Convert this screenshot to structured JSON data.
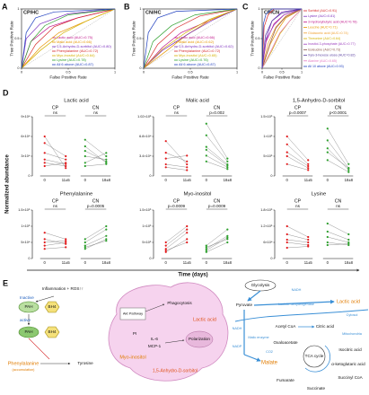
{
  "chart_data": [
    {
      "type": "roc",
      "label": "A",
      "title": "CP/HC",
      "xlabel": "False Positive Rate",
      "ylabel": "True Positive Rate",
      "xlim": [
        0,
        1
      ],
      "ylim": [
        0,
        1
      ],
      "xticks": [
        0,
        0.5,
        1
      ],
      "yticks": [
        0,
        0.5,
        1
      ],
      "legend": "lower right",
      "series": [
        {
          "name": "Lactic acid (AUC=0.75)",
          "color": "#c0168a",
          "x": [
            0,
            0.1,
            0.3,
            0.6,
            1
          ],
          "values": [
            0,
            0.45,
            0.7,
            0.85,
            1
          ]
        },
        {
          "name": "Malic acid (AUC=0.66)",
          "color": "#e69500",
          "x": [
            0,
            0.2,
            0.4,
            0.7,
            1
          ],
          "values": [
            0,
            0.35,
            0.6,
            0.8,
            1
          ]
        },
        {
          "name": "1,5-Anhydro-D-sorbitol (AUC=0.80)",
          "color": "#7b2fbe",
          "x": [
            0,
            0.05,
            0.2,
            0.5,
            1
          ],
          "values": [
            0,
            0.5,
            0.75,
            0.92,
            1
          ]
        },
        {
          "name": "Phenylalanine (AUC=0.72)",
          "color": "#d62728",
          "x": [
            0,
            0.15,
            0.35,
            0.6,
            1
          ],
          "values": [
            0,
            0.4,
            0.7,
            0.85,
            1
          ]
        },
        {
          "name": "Myo-inositol (AUC=0.64)",
          "color": "#d4b000",
          "x": [
            0,
            0.2,
            0.45,
            0.7,
            1
          ],
          "values": [
            0,
            0.3,
            0.6,
            0.8,
            1
          ]
        },
        {
          "name": "Lysine (AUC=0.78)",
          "color": "#2ca02c",
          "x": [
            0,
            0.1,
            0.25,
            0.5,
            1
          ],
          "values": [
            0,
            0.45,
            0.72,
            0.9,
            1
          ]
        },
        {
          "name": "All 6 above (AUC=0.87)",
          "color": "#1f3fbf",
          "x": [
            0,
            0.05,
            0.15,
            0.35,
            1
          ],
          "values": [
            0,
            0.6,
            0.85,
            0.95,
            1
          ]
        }
      ]
    },
    {
      "type": "roc",
      "label": "B",
      "title": "CN/HC",
      "xlabel": "False Positive Rate",
      "ylabel": "True Positive Rate",
      "xlim": [
        0,
        1
      ],
      "ylim": [
        0,
        1
      ],
      "xticks": [
        0,
        0.5,
        1
      ],
      "yticks": [
        0,
        0.5,
        1
      ],
      "legend": "lower right",
      "series": [
        {
          "name": "Lactic acid (AUC=0.66)",
          "color": "#c0168a",
          "x": [
            0,
            0.2,
            0.4,
            0.7,
            1
          ],
          "values": [
            0,
            0.35,
            0.6,
            0.8,
            1
          ]
        },
        {
          "name": "Malic acid (AUC=0.62)",
          "color": "#e69500",
          "x": [
            0,
            0.25,
            0.45,
            0.7,
            1
          ],
          "values": [
            0,
            0.3,
            0.55,
            0.8,
            1
          ]
        },
        {
          "name": "1,5-Anhydro-D-sorbitol (AUC=0.62)",
          "color": "#7b2fbe",
          "x": [
            0,
            0.2,
            0.5,
            0.75,
            1
          ],
          "values": [
            0,
            0.3,
            0.6,
            0.82,
            1
          ]
        },
        {
          "name": "Phenylalanine (AUC=0.72)",
          "color": "#d62728",
          "x": [
            0,
            0.15,
            0.35,
            0.6,
            1
          ],
          "values": [
            0,
            0.4,
            0.68,
            0.88,
            1
          ]
        },
        {
          "name": "Myo-inositol (AUC=0.65)",
          "color": "#d4b000",
          "x": [
            0,
            0.2,
            0.45,
            0.7,
            1
          ],
          "values": [
            0,
            0.32,
            0.6,
            0.82,
            1
          ]
        },
        {
          "name": "Lysine (AUC=0.76)",
          "color": "#2ca02c",
          "x": [
            0,
            0.1,
            0.3,
            0.55,
            1
          ],
          "values": [
            0,
            0.45,
            0.72,
            0.9,
            1
          ]
        },
        {
          "name": "All 6 above (AUC=0.87)",
          "color": "#1f3fbf",
          "x": [
            0,
            0.05,
            0.15,
            0.35,
            1
          ],
          "values": [
            0,
            0.6,
            0.85,
            0.96,
            1
          ]
        }
      ]
    },
    {
      "type": "roc",
      "label": "C",
      "title": "CP/CN",
      "xlabel": "False Positive Rate",
      "ylabel": "True Positive Rate",
      "xlim": [
        0,
        1
      ],
      "ylim": [
        0,
        1
      ],
      "xticks": [
        0,
        0.5,
        1
      ],
      "yticks": [
        0,
        0.5,
        1
      ],
      "legend": "right",
      "series": [
        {
          "name": "Sorbitol (AUC=0.91)",
          "color": "#d62728",
          "x": [
            0,
            0.05,
            0.15,
            0.3,
            1
          ],
          "values": [
            0,
            0.7,
            0.9,
            1,
            1
          ]
        },
        {
          "name": "Lysine (AUC=0.81)",
          "color": "#7b2fbe",
          "x": [
            0,
            0.1,
            0.25,
            0.5,
            1
          ],
          "values": [
            0,
            0.5,
            0.8,
            0.95,
            1
          ]
        },
        {
          "name": "3-Hydroxybutyric acid (AUC=0.78)",
          "color": "#c0168a",
          "x": [
            0,
            0.1,
            0.3,
            0.55,
            1
          ],
          "values": [
            0,
            0.45,
            0.75,
            0.9,
            1
          ]
        },
        {
          "name": "Leucine (AUC=0.71)",
          "color": "#e69500",
          "x": [
            0,
            0.2,
            0.4,
            0.6,
            1
          ],
          "values": [
            0,
            0.4,
            0.65,
            0.85,
            1
          ]
        },
        {
          "name": "Glutaconic acid (AUC=0.74)",
          "color": "#f0a030",
          "x": [
            0,
            0.15,
            0.35,
            0.6,
            1
          ],
          "values": [
            0,
            0.42,
            0.7,
            0.88,
            1
          ]
        },
        {
          "name": "Threonine (AUC=0.64)",
          "color": "#d4b000",
          "x": [
            0,
            0.25,
            0.45,
            0.7,
            1
          ],
          "values": [
            0,
            0.3,
            0.58,
            0.8,
            1
          ]
        },
        {
          "name": "Inositol-3-phosphate (AUC=0.77)",
          "color": "#9c3fbe",
          "x": [
            0,
            0.1,
            0.3,
            0.55,
            1
          ],
          "values": [
            0,
            0.48,
            0.73,
            0.9,
            1
          ]
        },
        {
          "name": "Isoleucine (AUC=0.73)",
          "color": "#8c564b",
          "x": [
            0,
            0.2,
            0.35,
            0.6,
            1
          ],
          "values": [
            0,
            0.42,
            0.68,
            0.87,
            1
          ]
        },
        {
          "name": "Xylo-3-hexose ulose (AUC=0.82)",
          "color": "#5a3fa0",
          "x": [
            0,
            0.08,
            0.25,
            0.5,
            1
          ],
          "values": [
            0,
            0.55,
            0.8,
            0.93,
            1
          ]
        },
        {
          "name": "Alanine (AUC=0.65)",
          "color": "#e377c2",
          "x": [
            0,
            0.25,
            0.45,
            0.7,
            1
          ],
          "values": [
            0,
            0.33,
            0.6,
            0.8,
            1
          ]
        },
        {
          "name": "All 10 above (AUC=0.93)",
          "color": "#1f3fbf",
          "x": [
            0,
            0.03,
            0.1,
            0.25,
            1
          ],
          "values": [
            0,
            0.75,
            0.92,
            1,
            1
          ]
        }
      ]
    },
    {
      "type": "paired",
      "title": "Lactic acid",
      "ylim": [
        0,
        90000
      ],
      "yticks": [
        0,
        {
          "value": 30000,
          "label": "3×10⁴"
        },
        {
          "value": 60000,
          "label": "6×10⁴"
        },
        {
          "value": 90000,
          "label": "9×10⁴"
        }
      ],
      "groups": [
        {
          "name": "CP",
          "color": "#e41a1c",
          "xlabels": [
            "0",
            "11±5"
          ],
          "annotation": "ns",
          "pairs": [
            [
              20000,
              15000
            ],
            [
              35000,
              25000
            ],
            [
              50000,
              30000
            ],
            [
              15000,
              20000
            ],
            [
              60000,
              12000
            ],
            [
              25000,
              18000
            ]
          ]
        },
        {
          "name": "CN",
          "color": "#2ca02c",
          "xlabels": [
            "0",
            "18±8"
          ],
          "annotation": "ns",
          "pairs": [
            [
              30000,
              25000
            ],
            [
              45000,
              20000
            ],
            [
              20000,
              35000
            ],
            [
              55000,
              30000
            ],
            [
              15000,
              18000
            ],
            [
              38000,
              22000
            ]
          ]
        }
      ]
    },
    {
      "type": "paired",
      "title": "Malic acid",
      "ylim": [
        0,
        102000
      ],
      "yticks": [
        0,
        {
          "value": 34000,
          "label": "3.4×10⁴"
        },
        {
          "value": 68000,
          "label": "6.8×10⁴"
        },
        {
          "value": 102000,
          "label": "1.02×10⁵"
        }
      ],
      "groups": [
        {
          "name": "CP",
          "color": "#e41a1c",
          "xlabels": [
            "0",
            "11±5"
          ],
          "annotation": "ns",
          "pairs": [
            [
              20000,
              15000
            ],
            [
              40000,
              25000
            ],
            [
              30000,
              35000
            ],
            [
              60000,
              20000
            ],
            [
              15000,
              10000
            ]
          ]
        },
        {
          "name": "CN",
          "color": "#2ca02c",
          "xlabels": [
            "0",
            "18±8"
          ],
          "annotation": "p=0.002",
          "pairs": [
            [
              50000,
              20000
            ],
            [
              70000,
              25000
            ],
            [
              35000,
              15000
            ],
            [
              90000,
              30000
            ],
            [
              25000,
              12000
            ],
            [
              45000,
              18000
            ]
          ]
        }
      ]
    },
    {
      "type": "paired",
      "title": "1,5-Anhydro-D-sorbitol",
      "ylim": [
        0,
        1500000
      ],
      "yticks": [
        0,
        {
          "value": 500000,
          "label": "5×10⁵"
        },
        {
          "value": 1000000,
          "label": "1×10⁶"
        },
        {
          "value": 1500000,
          "label": "1.5×10⁶"
        }
      ],
      "groups": [
        {
          "name": "CP",
          "color": "#e41a1c",
          "xlabels": [
            "0",
            "11±5"
          ],
          "annotation": "p=0.0007",
          "pairs": [
            [
              800000,
              300000
            ],
            [
              500000,
              200000
            ],
            [
              1000000,
              400000
            ],
            [
              300000,
              150000
            ],
            [
              600000,
              250000
            ]
          ]
        },
        {
          "name": "CN",
          "color": "#2ca02c",
          "xlabels": [
            "0",
            "18±8"
          ],
          "annotation": "p<0.0001",
          "pairs": [
            [
              900000,
              200000
            ],
            [
              700000,
              150000
            ],
            [
              1200000,
              300000
            ],
            [
              400000,
              100000
            ],
            [
              600000,
              200000
            ]
          ]
        }
      ]
    },
    {
      "type": "paired",
      "title": "Phenylalanine",
      "ylim": [
        0,
        150000
      ],
      "yticks": [
        0,
        {
          "value": 50000,
          "label": "5×10⁴"
        },
        {
          "value": 100000,
          "label": "1×10⁵"
        },
        {
          "value": 150000,
          "label": "1.5×10⁵"
        }
      ],
      "groups": [
        {
          "name": "CP",
          "color": "#e41a1c",
          "xlabels": [
            "0",
            "11±5"
          ],
          "annotation": "ns",
          "pairs": [
            [
              40000,
              50000
            ],
            [
              60000,
              45000
            ],
            [
              30000,
              35000
            ],
            [
              80000,
              60000
            ],
            [
              50000,
              55000
            ]
          ]
        },
        {
          "name": "CN",
          "color": "#2ca02c",
          "xlabels": [
            "0",
            "18±8"
          ],
          "annotation": "p=0.0005",
          "pairs": [
            [
              40000,
              70000
            ],
            [
              30000,
              60000
            ],
            [
              50000,
              90000
            ],
            [
              35000,
              55000
            ],
            [
              60000,
              100000
            ]
          ]
        }
      ]
    },
    {
      "type": "paired",
      "title": "Myo-inositol",
      "ylim": [
        0,
        1500000
      ],
      "yticks": [
        0,
        {
          "value": 500000,
          "label": "5×10⁵"
        },
        {
          "value": 1000000,
          "label": "1×10⁶"
        },
        {
          "value": 1500000,
          "label": "1.5×10⁶"
        }
      ],
      "groups": [
        {
          "name": "CP",
          "color": "#e41a1c",
          "xlabels": [
            "0",
            "11±5"
          ],
          "annotation": "p=0.0009",
          "pairs": [
            [
              300000,
              800000
            ],
            [
              500000,
              1000000
            ],
            [
              200000,
              600000
            ],
            [
              400000,
              900000
            ],
            [
              250000,
              500000
            ]
          ]
        },
        {
          "name": "CN",
          "color": "#2ca02c",
          "xlabels": [
            "0",
            "18±8"
          ],
          "annotation": "p=0.0009",
          "pairs": [
            [
              300000,
              700000
            ],
            [
              200000,
              500000
            ],
            [
              400000,
              900000
            ],
            [
              350000,
              600000
            ],
            [
              250000,
              650000
            ]
          ]
        }
      ]
    },
    {
      "type": "paired",
      "title": "Lysine",
      "ylim": [
        0,
        180000
      ],
      "yticks": [
        0,
        {
          "value": 60000,
          "label": "6×10⁴"
        },
        {
          "value": 120000,
          "label": "1.2×10⁵"
        },
        {
          "value": 180000,
          "label": "1.8×10⁵"
        }
      ],
      "groups": [
        {
          "name": "CP",
          "color": "#e41a1c",
          "xlabels": [
            "0",
            "11±5"
          ],
          "annotation": "ns",
          "pairs": [
            [
              60000,
              50000
            ],
            [
              90000,
              70000
            ],
            [
              40000,
              45000
            ],
            [
              120000,
              80000
            ],
            [
              70000,
              60000
            ]
          ]
        },
        {
          "name": "CN",
          "color": "#2ca02c",
          "xlabels": [
            "0",
            "18±8"
          ],
          "annotation": "ns",
          "pairs": [
            [
              80000,
              60000
            ],
            [
              50000,
              55000
            ],
            [
              100000,
              70000
            ],
            [
              60000,
              50000
            ],
            [
              130000,
              90000
            ]
          ]
        }
      ]
    }
  ],
  "panel_d": {
    "label": "D",
    "ylabel": "Normalized abundance",
    "xlabel": "Time (days)"
  },
  "diagram": {
    "label": "E",
    "texts": [
      "Inflammation + ROS↑↑",
      "Inactive",
      "PAH",
      "BH4",
      "active",
      "PAH",
      "BH4",
      "Phenylalanine",
      "(accumulation)",
      "Tyrosine",
      "Akt Pathway",
      "Phagocytosis",
      "PI",
      "IL-6",
      "MCP-1",
      "Polarization",
      "Lactic acid",
      "Myo-inositol",
      "1,5-Anhydro-D-sorbitol",
      "Glycolysis",
      "NADH",
      "Pyruvate",
      "Lactate dehydrogenase",
      "Lactic acid",
      "Cytosol",
      "NADH",
      "NADP",
      "Malic enzyme",
      "CO2",
      "Acetyl CoA",
      "Citric acid",
      "Mitochondria",
      "Oxaloacetate",
      "Isocitric acid",
      "Malate",
      "TCA cycle",
      "α-ketoglutaric acid",
      "Fumarate",
      "Succinyl CoA",
      "Succinate"
    ]
  }
}
